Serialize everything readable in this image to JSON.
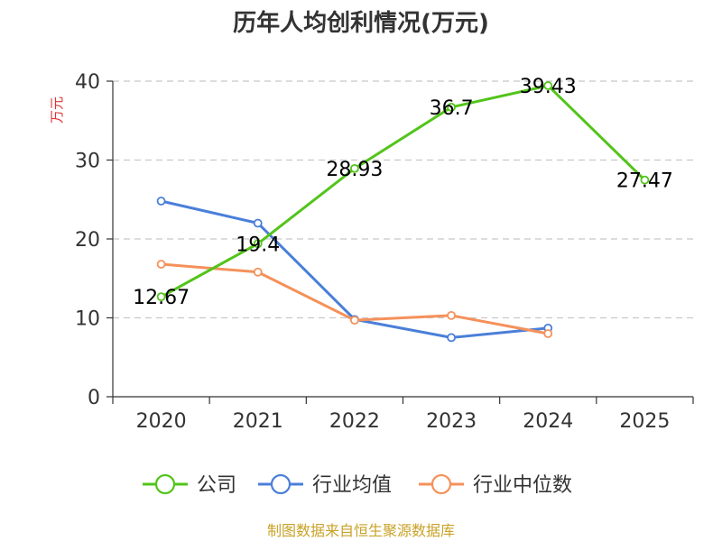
{
  "chart_data": {
    "type": "line",
    "title": "历年人均创利情况(万元)",
    "ylabel": "万元",
    "xlabel": "",
    "categories": [
      "2020",
      "2021",
      "2022",
      "2023",
      "2024",
      "2025"
    ],
    "ylim": [
      0,
      40
    ],
    "yticks": [
      0,
      10,
      20,
      30,
      40
    ],
    "grid": true,
    "legend_position": "bottom",
    "series": [
      {
        "name": "公司",
        "color": "#52c41a",
        "values": [
          12.67,
          19.4,
          28.93,
          36.7,
          39.43,
          27.47
        ],
        "labels": [
          "12.67",
          "19.4",
          "28.93",
          "36.7",
          "39.43",
          "27.47"
        ]
      },
      {
        "name": "行业均值",
        "color": "#4a7fd9",
        "values": [
          24.8,
          22.0,
          9.8,
          7.5,
          8.7,
          null
        ],
        "labels": null
      },
      {
        "name": "行业中位数",
        "color": "#f5915a",
        "values": [
          16.8,
          15.8,
          9.7,
          10.3,
          8.0,
          null
        ],
        "labels": null
      }
    ]
  },
  "source": "制图数据来自恒生聚源数据库"
}
